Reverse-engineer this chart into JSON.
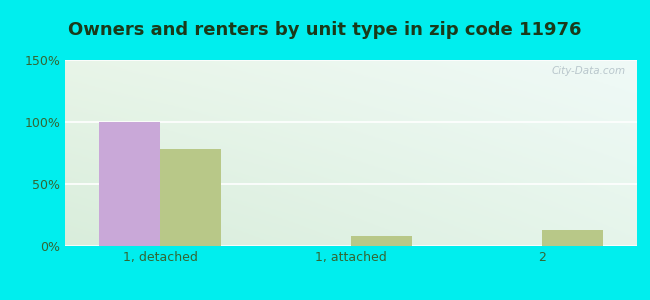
{
  "title": "Owners and renters by unit type in zip code 11976",
  "categories": [
    "1, detached",
    "1, attached",
    "2"
  ],
  "owner_values": [
    100,
    0,
    0
  ],
  "renter_values": [
    78,
    8,
    13
  ],
  "owner_color": "#c9a8d8",
  "renter_color": "#b8c888",
  "ylim": [
    0,
    150
  ],
  "yticks": [
    0,
    50,
    100,
    150
  ],
  "ytick_labels": [
    "0%",
    "50%",
    "100%",
    "150%"
  ],
  "bar_width": 0.32,
  "watermark": "City-Data.com",
  "title_fontsize": 13,
  "axis_fontsize": 9,
  "legend_fontsize": 9,
  "outer_bg": "#00eeee",
  "title_color": "#1a3a1a",
  "tick_color": "#336633"
}
